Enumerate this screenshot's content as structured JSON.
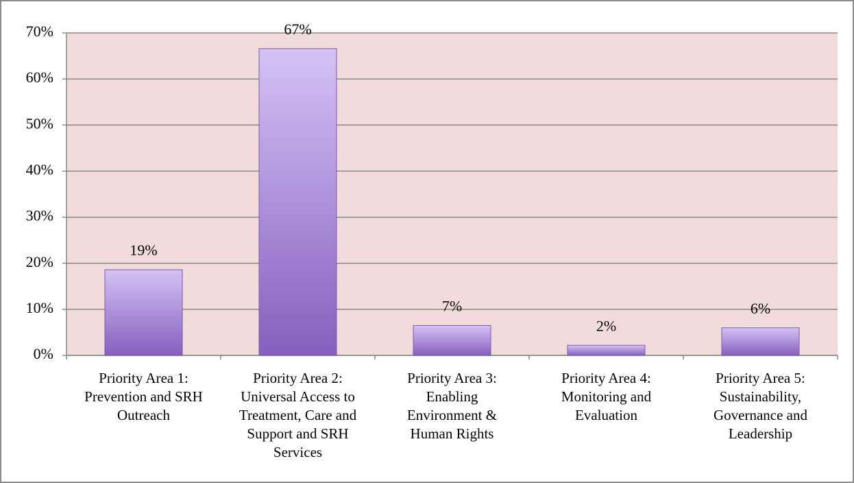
{
  "chart_data": {
    "type": "bar",
    "categories": [
      "Priority Area 1:\nPrevention and SRH\nOutreach",
      "Priority Area 2:\nUniversal Access to\nTreatment, Care and\nSupport and SRH\nServices",
      "Priority Area 3:\nEnabling\nEnvironment &\nHuman Rights",
      "Priority Area 4:\nMonitoring and\nEvaluation",
      "Priority Area 5:\nSustainability,\nGovernance and\nLeadership"
    ],
    "values": [
      18.6,
      66.6,
      6.5,
      2.2,
      6.0
    ],
    "value_labels": [
      "19%",
      "67%",
      "7%",
      "2%",
      "6%"
    ],
    "color": "#9b7fd4",
    "ylim": [
      0,
      70
    ],
    "yticks": [
      {
        "value": 0,
        "label": "0%"
      },
      {
        "value": 10,
        "label": "10%"
      },
      {
        "value": 20,
        "label": "20%"
      },
      {
        "value": 30,
        "label": "30%"
      },
      {
        "value": 40,
        "label": "40%"
      },
      {
        "value": 50,
        "label": "50%"
      },
      {
        "value": 60,
        "label": "60%"
      },
      {
        "value": 70,
        "label": "70%"
      }
    ],
    "grid": true
  }
}
